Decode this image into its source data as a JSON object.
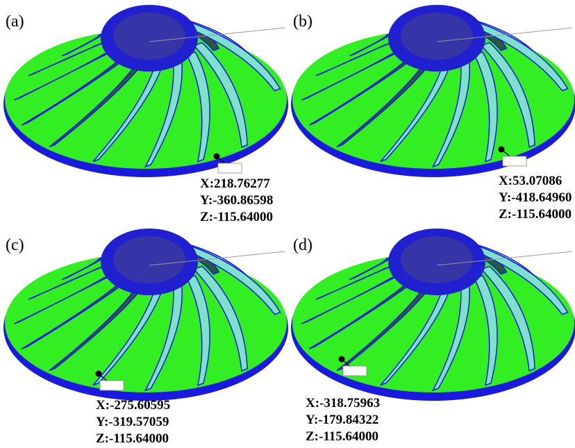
{
  "panels": [
    {
      "label": "(a)",
      "coords": [
        "X:218.76277",
        "Y:-360.86598",
        "Z:-115.64000"
      ]
    },
    {
      "label": "(b)",
      "coords": [
        "X:53.07086",
        "Y:-418.64960",
        "Z:-115.64000"
      ]
    },
    {
      "label": "(c)",
      "coords": [
        "X:-275.60595",
        "Y:-319.57059",
        "Z:-115.64000"
      ]
    },
    {
      "label": "(d)",
      "coords": [
        "X:-318.75963",
        "Y:-179.84322",
        "Z:-115.64000"
      ]
    }
  ]
}
